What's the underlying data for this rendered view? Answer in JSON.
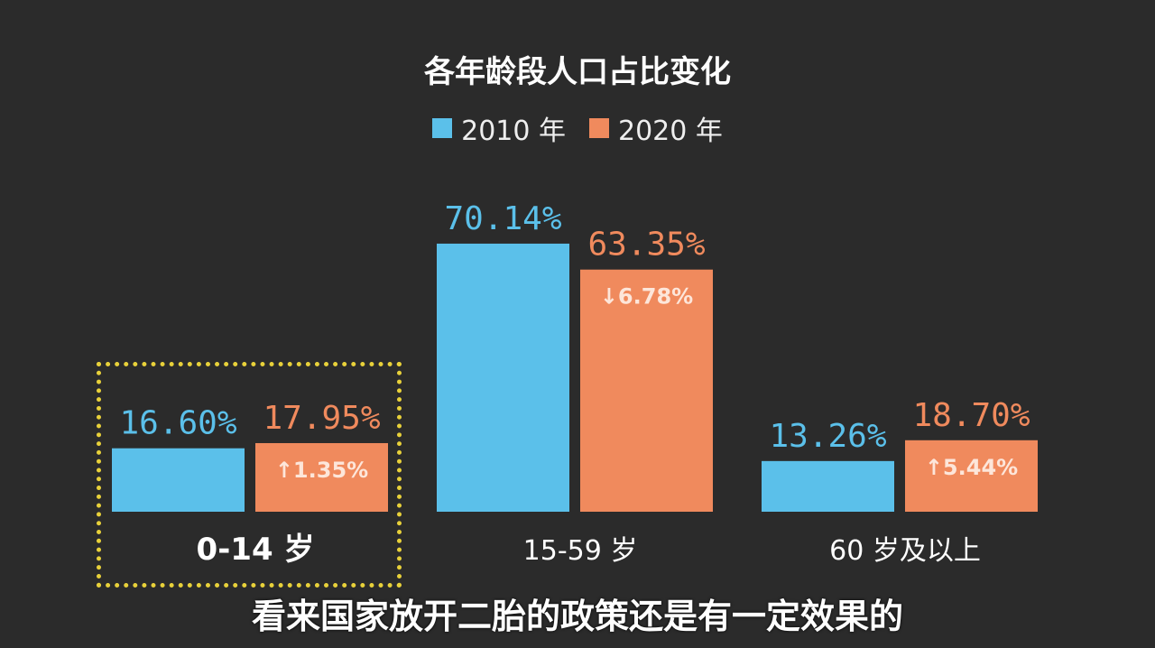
{
  "chart_data": {
    "type": "bar",
    "title": "各年龄段人口占比变化",
    "categories": [
      "0-14 岁",
      "15-59 岁",
      "60 岁及以上"
    ],
    "series": [
      {
        "name": "2010 年",
        "color": "#5bc0ea",
        "values": [
          16.6,
          70.14,
          13.26
        ],
        "labels": [
          "16.60%",
          "70.14%",
          "13.26%"
        ]
      },
      {
        "name": "2020 年",
        "color": "#f08a5d",
        "values": [
          17.95,
          63.35,
          18.7
        ],
        "labels": [
          "17.95%",
          "63.35%",
          "18.70%"
        ]
      }
    ],
    "changes": [
      "↑1.35%",
      "↓6.78%",
      "↑5.44%"
    ],
    "highlighted_category": "0-14 岁",
    "ylim": [
      0,
      75
    ]
  },
  "subtitle": "看来国家放开二胎的政策还是有一定效果的"
}
